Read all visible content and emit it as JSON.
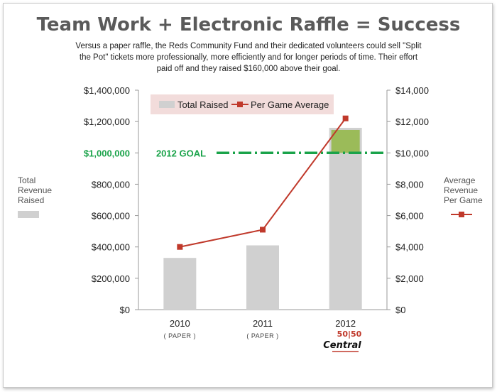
{
  "header": {
    "title": "Team Work + Electronic Raffle = Success",
    "subtitle": "Versus a paper raffle, the Reds Community Fund and their dedicated volunteers could sell \"Split the Pot\" tickets more professionally, more efficiently and for longer periods of time. Their effort paid off and they raised $160,000 above their goal."
  },
  "side_labels": {
    "left": "Total Revenue Raised",
    "right": "Average Revenue Per Game"
  },
  "legend": {
    "bar_label": "Total Raised",
    "line_label": "Per Game Average"
  },
  "goal": {
    "label": "2012 GOAL",
    "value_label": "$1,000,000",
    "value": 1000000
  },
  "logo": {
    "text_top": "50|50",
    "text_main": "Central"
  },
  "colors": {
    "bar": "#d0d0d0",
    "excess": "#9bbb59",
    "line": "#c0392b",
    "goal": "#1aa34a",
    "legend_bg": "#f2dcdb"
  },
  "chart_data": {
    "type": "bar",
    "categories": [
      "2010",
      "2011",
      "2012"
    ],
    "category_notes": [
      "( PAPER )",
      "( PAPER )",
      ""
    ],
    "series": [
      {
        "name": "Total Raised",
        "type": "bar",
        "axis": "left",
        "values": [
          330000,
          410000,
          1160000
        ]
      },
      {
        "name": "Per Game Average",
        "type": "line",
        "axis": "right",
        "values": [
          4000,
          5100,
          12200
        ]
      }
    ],
    "y_left": {
      "ylim": [
        0,
        1400000
      ],
      "ticks": [
        "$0",
        "$200,000",
        "$400,000",
        "$600,000",
        "$800,000",
        "$1,000,000",
        "$1,200,000",
        "$1,400,000"
      ]
    },
    "y_right": {
      "ylim": [
        0,
        14000
      ],
      "ticks": [
        "$0",
        "$2,000",
        "$4,000",
        "$6,000",
        "$8,000",
        "$10,000",
        "$12,000",
        "$14,000"
      ]
    },
    "goal_line": 1000000,
    "above_goal": 160000,
    "legend_position": "top",
    "grid": false
  }
}
